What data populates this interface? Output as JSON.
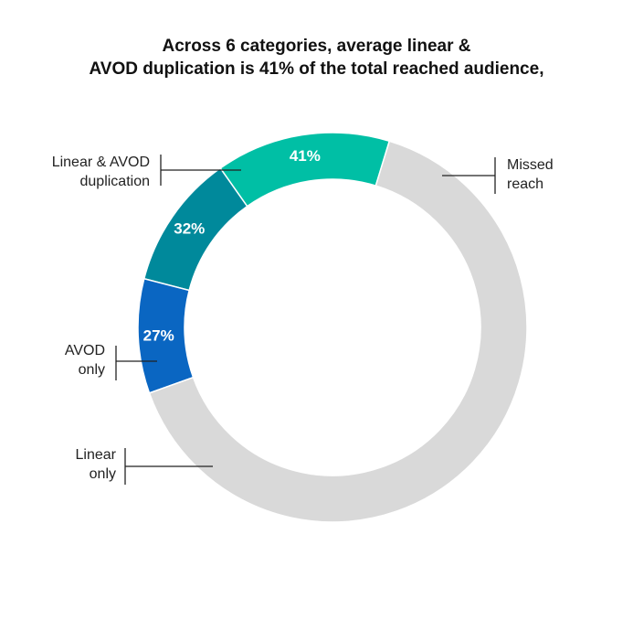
{
  "chart_data": {
    "type": "pie",
    "title_lines": [
      "Across 6 categories, average linear &",
      "AVOD duplication is 41% of the total reached audience,"
    ],
    "slices": [
      {
        "name_lines": [
          "Linear & AVOD",
          "duplication"
        ],
        "label": "41%",
        "value": 14.5,
        "color": "#00bfa5"
      },
      {
        "name_lines": [
          "AVOD",
          "only"
        ],
        "label": "32%",
        "value": 11.2,
        "color": "#00899b"
      },
      {
        "name_lines": [
          "Linear",
          "only"
        ],
        "label": "27%",
        "value": 9.5,
        "color": "#0a66c2"
      },
      {
        "name_lines": [
          "Missed",
          "reach"
        ],
        "label": "",
        "value": 64.8,
        "color": "#d9d9d9"
      }
    ]
  }
}
